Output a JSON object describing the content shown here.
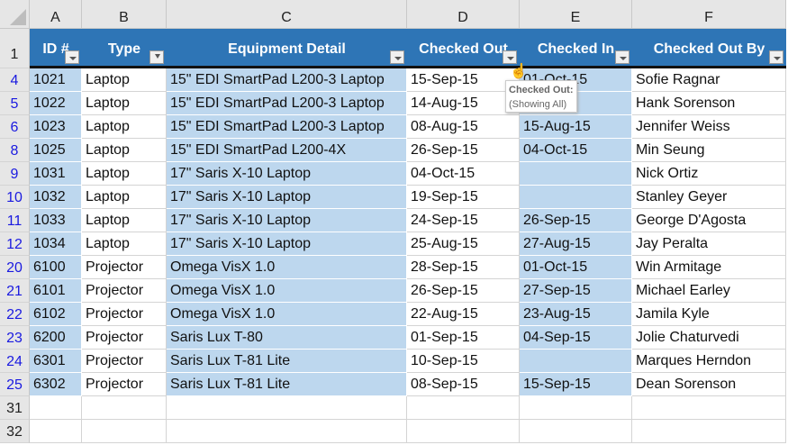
{
  "columns": [
    "A",
    "B",
    "C",
    "D",
    "E",
    "F"
  ],
  "headers": [
    "ID #",
    "Type",
    "Equipment Detail",
    "Checked Out",
    "Checked In",
    "Checked Out By"
  ],
  "rows": [
    {
      "n": "4",
      "c": [
        "1021",
        "Laptop",
        "15\" EDI SmartPad L200-3 Laptop",
        "15-Sep-15",
        "01-Oct-15",
        "Sofie Ragnar"
      ]
    },
    {
      "n": "5",
      "c": [
        "1022",
        "Laptop",
        "15\" EDI SmartPad L200-3 Laptop",
        "14-Aug-15",
        "",
        "Hank Sorenson"
      ]
    },
    {
      "n": "6",
      "c": [
        "1023",
        "Laptop",
        "15\" EDI SmartPad L200-3 Laptop",
        "08-Aug-15",
        "15-Aug-15",
        "Jennifer Weiss"
      ]
    },
    {
      "n": "8",
      "c": [
        "1025",
        "Laptop",
        "15\" EDI SmartPad L200-4X",
        "26-Sep-15",
        "04-Oct-15",
        "Min Seung"
      ]
    },
    {
      "n": "9",
      "c": [
        "1031",
        "Laptop",
        "17\" Saris X-10 Laptop",
        "04-Oct-15",
        "",
        "Nick Ortiz"
      ]
    },
    {
      "n": "10",
      "c": [
        "1032",
        "Laptop",
        "17\" Saris X-10 Laptop",
        "19-Sep-15",
        "",
        "Stanley Geyer"
      ]
    },
    {
      "n": "11",
      "c": [
        "1033",
        "Laptop",
        "17\" Saris X-10 Laptop",
        "24-Sep-15",
        "26-Sep-15",
        "George D'Agosta"
      ]
    },
    {
      "n": "12",
      "c": [
        "1034",
        "Laptop",
        "17\" Saris X-10 Laptop",
        "25-Aug-15",
        "27-Aug-15",
        "Jay Peralta"
      ]
    },
    {
      "n": "20",
      "c": [
        "6100",
        "Projector",
        "Omega VisX 1.0",
        "28-Sep-15",
        "01-Oct-15",
        "Win Armitage"
      ]
    },
    {
      "n": "21",
      "c": [
        "6101",
        "Projector",
        "Omega VisX 1.0",
        "26-Sep-15",
        "27-Sep-15",
        "Michael Earley"
      ]
    },
    {
      "n": "22",
      "c": [
        "6102",
        "Projector",
        "Omega VisX 1.0",
        "22-Aug-15",
        "23-Aug-15",
        "Jamila Kyle"
      ]
    },
    {
      "n": "23",
      "c": [
        "6200",
        "Projector",
        "Saris Lux T-80",
        "01-Sep-15",
        "04-Sep-15",
        "Jolie Chaturvedi"
      ]
    },
    {
      "n": "24",
      "c": [
        "6301",
        "Projector",
        "Saris Lux T-81 Lite",
        "10-Sep-15",
        "",
        "Marques Herndon"
      ]
    },
    {
      "n": "25",
      "c": [
        "6302",
        "Projector",
        "Saris Lux T-81 Lite",
        "08-Sep-15",
        "15-Sep-15",
        "Dean Sorenson"
      ]
    },
    {
      "n": "31",
      "c": [
        "",
        "",
        "",
        "",
        "",
        ""
      ]
    },
    {
      "n": "32",
      "c": [
        "",
        "",
        "",
        "",
        "",
        ""
      ]
    }
  ],
  "header_row_number": "1",
  "filtered_column": "Type",
  "tooltip": {
    "title": "Checked Out:",
    "text": "(Showing All)"
  },
  "colors": {
    "header": "#2e75b6",
    "band": "#bdd7ee"
  }
}
